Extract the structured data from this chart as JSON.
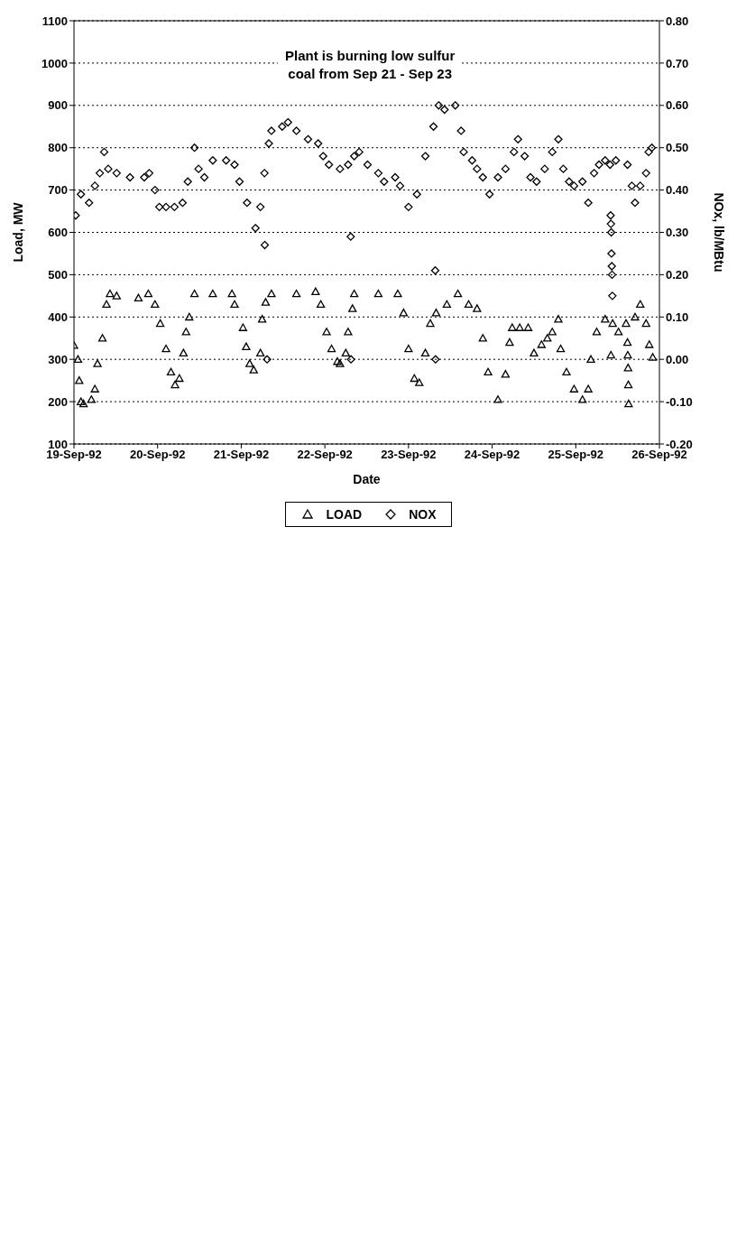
{
  "chart_data": {
    "type": "scatter",
    "xlabel": "Date",
    "ylabel": "Load, MW",
    "y2label": "NOx, lb/MBtu",
    "annotations": [
      "Plant is burning low sulfur\ncoal from Sep 21 - Sep 23"
    ],
    "xlim": [
      "1992-09-19",
      "1992-09-26"
    ],
    "xticks": [
      {
        "value": "1992-09-19",
        "label": "19-Sep-92"
      },
      {
        "value": "1992-09-20",
        "label": "20-Sep-92"
      },
      {
        "value": "1992-09-21",
        "label": "21-Sep-92"
      },
      {
        "value": "1992-09-22",
        "label": "22-Sep-92"
      },
      {
        "value": "1992-09-23",
        "label": "23-Sep-92"
      },
      {
        "value": "1992-09-24",
        "label": "24-Sep-92"
      },
      {
        "value": "1992-09-25",
        "label": "25-Sep-92"
      },
      {
        "value": "1992-09-26",
        "label": "26-Sep-92"
      }
    ],
    "ylim": [
      100,
      1100
    ],
    "yticks": [
      100,
      200,
      300,
      400,
      500,
      600,
      700,
      800,
      900,
      1000,
      1100
    ],
    "y2lim": [
      -0.2,
      0.8
    ],
    "y2ticks": [
      {
        "value": -0.2,
        "label": "-0.20"
      },
      {
        "value": -0.1,
        "label": "-0.10"
      },
      {
        "value": 0,
        "label": "0.00"
      },
      {
        "value": 0.1,
        "label": "0.10"
      },
      {
        "value": 0.2,
        "label": "0.20"
      },
      {
        "value": 0.3,
        "label": "0.30"
      },
      {
        "value": 0.4,
        "label": "0.40"
      },
      {
        "value": 0.5,
        "label": "0.50"
      },
      {
        "value": 0.6,
        "label": "0.60"
      },
      {
        "value": 0.7,
        "label": "0.70"
      },
      {
        "value": 0.8,
        "label": "0.80"
      }
    ],
    "grid": "y",
    "legend": "bottom",
    "series": [
      {
        "name": "LOAD",
        "color": "#000000",
        "marker": "triangle",
        "x": [
          "1992-09-19T00:00",
          "1992-09-19T01:10",
          "1992-09-19T01:30",
          "1992-09-19T02:00",
          "1992-09-19T02:45",
          "1992-09-19T05:00",
          "1992-09-19T06:00",
          "1992-09-19T06:45",
          "1992-09-19T08:10",
          "1992-09-19T09:20",
          "1992-09-19T10:20",
          "1992-09-19T12:15",
          "1992-09-19T18:30",
          "1992-09-19T21:20",
          "1992-09-19T23:15",
          "1992-09-20T00:45",
          "1992-09-20T02:25",
          "1992-09-20T03:50",
          "1992-09-20T05:00",
          "1992-09-20T06:15",
          "1992-09-20T07:25",
          "1992-09-20T08:10",
          "1992-09-20T09:05",
          "1992-09-20T10:35",
          "1992-09-20T15:50",
          "1992-09-20T21:20",
          "1992-09-20T22:05",
          "1992-09-21T00:30",
          "1992-09-21T01:25",
          "1992-09-21T02:25",
          "1992-09-21T03:35",
          "1992-09-21T05:30",
          "1992-09-21T06:00",
          "1992-09-21T07:00",
          "1992-09-21T08:40",
          "1992-09-21T15:50",
          "1992-09-21T21:20",
          "1992-09-21T22:50",
          "1992-09-22T00:30",
          "1992-09-22T01:55",
          "1992-09-22T03:35",
          "1992-09-22T04:20",
          "1992-09-22T06:00",
          "1992-09-22T06:40",
          "1992-09-22T07:55",
          "1992-09-22T08:25",
          "1992-09-22T15:20",
          "1992-09-22T20:55",
          "1992-09-22T22:35",
          "1992-09-23T00:00",
          "1992-09-23T01:40",
          "1992-09-23T03:05",
          "1992-09-23T04:50",
          "1992-09-23T06:15",
          "1992-09-23T07:55",
          "1992-09-23T11:00",
          "1992-09-23T14:10",
          "1992-09-23T17:15",
          "1992-09-23T19:40",
          "1992-09-23T21:20",
          "1992-09-23T22:50",
          "1992-09-24T01:40",
          "1992-09-24T03:50",
          "1992-09-24T05:00",
          "1992-09-24T05:45",
          "1992-09-24T07:55",
          "1992-09-24T10:20",
          "1992-09-24T12:00",
          "1992-09-24T14:10",
          "1992-09-24T15:50",
          "1992-09-24T17:15",
          "1992-09-24T19:00",
          "1992-09-24T19:40",
          "1992-09-24T21:20",
          "1992-09-24T23:30",
          "1992-09-25T01:55",
          "1992-09-25T03:35",
          "1992-09-25T04:20",
          "1992-09-25T06:00",
          "1992-09-25T08:25",
          "1992-09-25T10:05",
          "1992-09-25T10:35",
          "1992-09-25T12:15",
          "1992-09-25T14:25",
          "1992-09-25T14:50",
          "1992-09-25T14:55",
          "1992-09-25T15:00",
          "1992-09-25T15:05",
          "1992-09-25T15:10",
          "1992-09-25T17:00",
          "1992-09-25T18:30",
          "1992-09-25T20:10",
          "1992-09-25T21:05",
          "1992-09-25T22:05"
        ],
        "values": [
          333,
          300,
          250,
          200,
          195,
          205,
          230,
          290,
          350,
          430,
          455,
          450,
          445,
          455,
          430,
          385,
          325,
          270,
          240,
          255,
          315,
          365,
          400,
          455,
          455,
          455,
          430,
          375,
          330,
          290,
          275,
          315,
          395,
          435,
          455,
          455,
          460,
          430,
          365,
          325,
          295,
          290,
          315,
          365,
          420,
          455,
          455,
          455,
          410,
          325,
          255,
          245,
          315,
          385,
          410,
          430,
          455,
          430,
          420,
          350,
          270,
          205,
          265,
          340,
          375,
          375,
          375,
          315,
          335,
          350,
          365,
          395,
          325,
          270,
          230,
          205,
          230,
          300,
          365,
          395,
          310,
          385,
          365,
          385,
          340,
          310,
          280,
          240,
          195,
          400,
          430,
          385,
          335,
          305
        ]
      },
      {
        "name": "NOX",
        "color": "#000000",
        "marker": "diamond",
        "axis": "y2",
        "x": [
          "1992-09-19T00:30",
          "1992-09-19T02:00",
          "1992-09-19T04:20",
          "1992-09-19T06:00",
          "1992-09-19T07:25",
          "1992-09-19T08:40",
          "1992-09-19T09:50",
          "1992-09-19T12:15",
          "1992-09-19T16:05",
          "1992-09-19T20:10",
          "1992-09-19T21:35",
          "1992-09-19T23:15",
          "1992-09-20T00:30",
          "1992-09-20T02:25",
          "1992-09-20T04:50",
          "1992-09-20T07:10",
          "1992-09-20T08:40",
          "1992-09-20T10:35",
          "1992-09-20T11:45",
          "1992-09-20T13:25",
          "1992-09-20T15:50",
          "1992-09-20T19:40",
          "1992-09-20T22:05",
          "1992-09-20T23:30",
          "1992-09-21T01:40",
          "1992-09-21T04:05",
          "1992-09-21T05:30",
          "1992-09-21T06:40",
          "1992-09-21T06:45",
          "1992-09-21T07:25",
          "1992-09-21T07:55",
          "1992-09-21T08:40",
          "1992-09-21T11:45",
          "1992-09-21T13:25",
          "1992-09-21T15:50",
          "1992-09-21T19:10",
          "1992-09-21T22:05",
          "1992-09-21T23:30",
          "1992-09-22T01:10",
          "1992-09-22T04:20",
          "1992-09-22T06:40",
          "1992-09-22T07:25",
          "1992-09-22T07:30",
          "1992-09-22T08:25",
          "1992-09-22T09:50",
          "1992-09-22T12:15",
          "1992-09-22T15:20",
          "1992-09-22T17:00",
          "1992-09-22T20:10",
          "1992-09-22T21:35",
          "1992-09-23T00:00",
          "1992-09-23T02:25",
          "1992-09-23T04:50",
          "1992-09-23T07:10",
          "1992-09-23T07:40",
          "1992-09-23T07:45",
          "1992-09-23T08:40",
          "1992-09-23T10:20",
          "1992-09-23T13:25",
          "1992-09-23T15:05",
          "1992-09-23T15:50",
          "1992-09-23T18:15",
          "1992-09-23T19:40",
          "1992-09-23T21:20",
          "1992-09-23T23:15",
          "1992-09-24T01:40",
          "1992-09-24T03:50",
          "1992-09-24T06:15",
          "1992-09-24T07:25",
          "1992-09-24T09:20",
          "1992-09-24T11:00",
          "1992-09-24T12:45",
          "1992-09-24T15:05",
          "1992-09-24T17:15",
          "1992-09-24T19:00",
          "1992-09-24T20:25",
          "1992-09-24T22:05",
          "1992-09-24T23:30",
          "1992-09-25T01:55",
          "1992-09-25T03:35",
          "1992-09-25T05:15",
          "1992-09-25T06:40",
          "1992-09-25T08:25",
          "1992-09-25T09:50",
          "1992-09-25T10:00",
          "1992-09-25T10:05",
          "1992-09-25T10:10",
          "1992-09-25T10:15",
          "1992-09-25T10:20",
          "1992-09-25T10:25",
          "1992-09-25T10:30",
          "1992-09-25T11:30",
          "1992-09-25T14:50",
          "1992-09-25T16:05",
          "1992-09-25T17:00",
          "1992-09-25T18:30",
          "1992-09-25T20:10",
          "1992-09-25T20:55",
          "1992-09-25T21:50"
        ],
        "values": [
          0.34,
          0.39,
          0.37,
          0.41,
          0.44,
          0.49,
          0.45,
          0.44,
          0.43,
          0.43,
          0.44,
          0.4,
          0.36,
          0.36,
          0.36,
          0.37,
          0.42,
          0.5,
          0.45,
          0.43,
          0.47,
          0.47,
          0.46,
          0.42,
          0.37,
          0.31,
          0.36,
          0.44,
          0.27,
          0.0,
          0.51,
          0.54,
          0.55,
          0.56,
          0.54,
          0.52,
          0.51,
          0.48,
          0.46,
          0.45,
          0.46,
          0.29,
          0.0,
          0.48,
          0.49,
          0.46,
          0.44,
          0.42,
          0.43,
          0.41,
          0.36,
          0.39,
          0.48,
          0.55,
          0.21,
          0.0,
          0.6,
          0.59,
          0.6,
          0.54,
          0.49,
          0.47,
          0.45,
          0.43,
          0.39,
          0.43,
          0.45,
          0.49,
          0.52,
          0.48,
          0.43,
          0.42,
          0.45,
          0.49,
          0.52,
          0.45,
          0.42,
          0.41,
          0.42,
          0.37,
          0.44,
          0.46,
          0.47,
          0.46,
          0.34,
          0.32,
          0.3,
          0.25,
          0.22,
          0.2,
          0.15,
          0.47,
          0.46,
          0.41,
          0.37,
          0.41,
          0.44,
          0.49,
          0.5
        ]
      }
    ]
  }
}
